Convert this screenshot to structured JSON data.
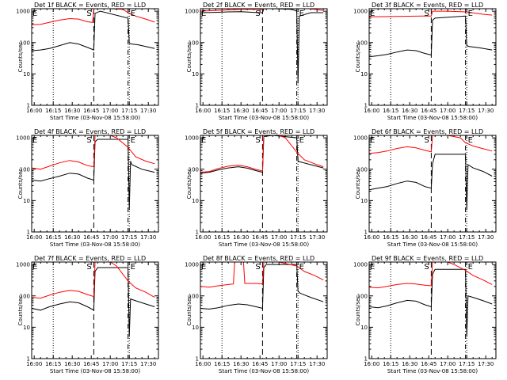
{
  "figure": {
    "xlabel": "Start Time (03-Nov-08 15:58:00)",
    "ylabel": "Counts/sec",
    "x_tick_labels": [
      "16:00",
      "16:15",
      "16:30",
      "16:45",
      "17:00",
      "17:15",
      "17:30"
    ],
    "y_tick_labels": [
      "1",
      "10",
      "100",
      "1000"
    ],
    "marker_labels": {
      "start_left": "E",
      "start_mid": "S",
      "end": "E"
    },
    "colors": {
      "events": "#000000",
      "lld": "#ff0000",
      "background": "#ffffff"
    }
  },
  "chart_data": [
    {
      "type": "line",
      "title": "Det 1f BLACK = Events, RED = LLD",
      "xlabel": "Start Time (03-Nov-08 15:58:00)",
      "ylabel": "Counts/sec",
      "ylim": [
        1,
        1200
      ],
      "log_y": true,
      "xlim": [
        "15:58",
        "17:38"
      ],
      "markers": {
        "S": "16:47",
        "E": "17:14"
      },
      "series": [
        {
          "name": "Events",
          "color": "#000000",
          "x": [
            "15:58",
            "16:05",
            "16:12",
            "16:20",
            "16:28",
            "16:35",
            "16:42",
            "16:47",
            "16:48",
            "16:52",
            "17:14",
            "17:15",
            "17:17",
            "17:22",
            "17:28",
            "17:35"
          ],
          "values": [
            55,
            58,
            65,
            80,
            100,
            90,
            70,
            58,
            850,
            1000,
            600,
            95,
            90,
            85,
            75,
            65
          ]
        },
        {
          "name": "LLD",
          "color": "#ff0000",
          "x": [
            "15:58",
            "16:05",
            "16:12",
            "16:20",
            "16:28",
            "16:35",
            "16:42",
            "16:46",
            "16:47",
            "17:00",
            "17:10",
            "17:14",
            "17:20",
            "17:28",
            "17:35"
          ],
          "values": [
            370,
            380,
            440,
            520,
            580,
            560,
            460,
            440,
            1200,
            1200,
            1150,
            900,
            700,
            560,
            450
          ]
        }
      ]
    },
    {
      "type": "line",
      "title": "Det 2f BLACK = Events, RED = LLD",
      "xlabel": "Start Time (03-Nov-08 15:58:00)",
      "ylabel": "Counts/sec",
      "ylim": [
        1,
        1200
      ],
      "log_y": true,
      "xlim": [
        "15:58",
        "17:38"
      ],
      "markers": {
        "S": "16:47",
        "E": "17:14"
      },
      "series": [
        {
          "name": "Events",
          "color": "#000000",
          "x": [
            "15:58",
            "16:10",
            "16:20",
            "16:30",
            "16:40",
            "16:47",
            "16:48",
            "16:55",
            "17:10",
            "17:14",
            "17:15",
            "17:16",
            "17:25",
            "17:35"
          ],
          "values": [
            900,
            920,
            950,
            960,
            920,
            900,
            1200,
            1200,
            1150,
            1000,
            5,
            700,
            900,
            900
          ]
        },
        {
          "name": "LLD",
          "color": "#ff0000",
          "x": [
            "15:58",
            "16:10",
            "16:20",
            "16:30",
            "16:40",
            "16:47",
            "16:48",
            "16:55",
            "17:00",
            "17:10",
            "17:14",
            "17:20",
            "17:28",
            "17:35"
          ],
          "values": [
            1000,
            1050,
            1100,
            1150,
            1150,
            1150,
            1200,
            1200,
            1200,
            1250,
            1400,
            1250,
            1150,
            1050
          ]
        }
      ]
    },
    {
      "type": "line",
      "title": "Det 3f BLACK = Events, RED = LLD",
      "xlabel": "Start Time (03-Nov-08 15:58:00)",
      "ylabel": "Counts/sec",
      "ylim": [
        1,
        1200
      ],
      "log_y": true,
      "xlim": [
        "15:58",
        "17:38"
      ],
      "markers": {
        "S": "16:47",
        "E": "17:14"
      },
      "series": [
        {
          "name": "Events",
          "color": "#000000",
          "x": [
            "15:58",
            "16:05",
            "16:12",
            "16:20",
            "16:28",
            "16:35",
            "16:42",
            "16:47",
            "16:48",
            "16:50",
            "17:14",
            "17:15",
            "17:17",
            "17:25",
            "17:35"
          ],
          "values": [
            35,
            38,
            42,
            50,
            58,
            55,
            45,
            40,
            520,
            600,
            700,
            80,
            75,
            68,
            58
          ]
        },
        {
          "name": "LLD",
          "color": "#ff0000",
          "x": [
            "15:58",
            "16:10",
            "16:20",
            "16:30",
            "16:40",
            "16:47",
            "16:48",
            "17:00",
            "17:14",
            "17:20",
            "17:28",
            "17:35"
          ],
          "values": [
            660,
            670,
            680,
            690,
            700,
            700,
            1000,
            1000,
            950,
            880,
            800,
            750
          ]
        }
      ]
    },
    {
      "type": "line",
      "title": "Det 4f BLACK = Events, RED = LLD",
      "xlabel": "Start Time (03-Nov-08 15:58:00)",
      "ylabel": "Counts/sec",
      "ylim": [
        1,
        1200
      ],
      "log_y": true,
      "xlim": [
        "15:58",
        "17:38"
      ],
      "markers": {
        "S": "16:47",
        "E": "17:14"
      },
      "series": [
        {
          "name": "Events",
          "color": "#000000",
          "x": [
            "15:58",
            "16:05",
            "16:12",
            "16:20",
            "16:28",
            "16:35",
            "16:42",
            "16:47",
            "16:48",
            "16:50",
            "17:14",
            "17:15",
            "17:16",
            "17:17",
            "17:25",
            "17:35"
          ],
          "values": [
            45,
            42,
            50,
            60,
            75,
            70,
            52,
            45,
            750,
            900,
            900,
            5,
            180,
            140,
            100,
            80
          ]
        },
        {
          "name": "LLD",
          "color": "#ff0000",
          "x": [
            "15:58",
            "16:05",
            "16:12",
            "16:20",
            "16:28",
            "16:35",
            "16:42",
            "16:47",
            "16:48",
            "17:00",
            "17:05",
            "17:14",
            "17:20",
            "17:28",
            "17:35"
          ],
          "values": [
            110,
            100,
            125,
            160,
            190,
            170,
            130,
            120,
            1200,
            1200,
            1000,
            500,
            250,
            180,
            150
          ]
        }
      ]
    },
    {
      "type": "line",
      "title": "Det 5f BLACK = Events, RED = LLD",
      "xlabel": "Start Time (03-Nov-08 15:58:00)",
      "ylabel": "Counts/sec",
      "ylim": [
        1,
        1200
      ],
      "log_y": true,
      "xlim": [
        "15:58",
        "17:38"
      ],
      "markers": {
        "S": "16:47",
        "E": "17:14"
      },
      "series": [
        {
          "name": "Events",
          "color": "#000000",
          "x": [
            "15:58",
            "16:05",
            "16:12",
            "16:20",
            "16:28",
            "16:35",
            "16:42",
            "16:47",
            "16:48",
            "16:55",
            "17:14",
            "17:15",
            "17:17",
            "17:25",
            "17:35"
          ],
          "values": [
            75,
            80,
            95,
            110,
            120,
            108,
            90,
            80,
            1100,
            1200,
            1000,
            180,
            170,
            140,
            110
          ]
        },
        {
          "name": "LLD",
          "color": "#ff0000",
          "x": [
            "15:58",
            "16:05",
            "16:12",
            "16:20",
            "16:28",
            "16:35",
            "16:42",
            "16:47",
            "16:48",
            "17:00",
            "17:05",
            "17:14",
            "17:20",
            "17:28",
            "17:35"
          ],
          "values": [
            80,
            85,
            105,
            125,
            135,
            120,
            98,
            88,
            1200,
            1200,
            1000,
            350,
            200,
            150,
            120
          ]
        }
      ]
    },
    {
      "type": "line",
      "title": "Det 6f BLACK = Events, RED = LLD",
      "xlabel": "Start Time (03-Nov-08 15:58:00)",
      "ylabel": "Counts/sec",
      "ylim": [
        1,
        1200
      ],
      "log_y": true,
      "xlim": [
        "15:58",
        "17:38"
      ],
      "markers": {
        "S": "16:47",
        "E": "17:14"
      },
      "series": [
        {
          "name": "Events",
          "color": "#000000",
          "x": [
            "15:58",
            "16:05",
            "16:12",
            "16:20",
            "16:28",
            "16:35",
            "16:42",
            "16:47",
            "16:48",
            "16:50",
            "17:14",
            "17:15",
            "17:16",
            "17:20",
            "17:28",
            "17:35"
          ],
          "values": [
            22,
            25,
            28,
            35,
            42,
            38,
            28,
            25,
            150,
            300,
            300,
            5,
            140,
            110,
            85,
            60
          ]
        },
        {
          "name": "LLD",
          "color": "#ff0000",
          "x": [
            "15:58",
            "16:05",
            "16:12",
            "16:20",
            "16:28",
            "16:35",
            "16:42",
            "16:47",
            "16:48",
            "17:00",
            "17:10",
            "17:14",
            "17:20",
            "17:28",
            "17:35"
          ],
          "values": [
            320,
            340,
            380,
            460,
            520,
            480,
            400,
            360,
            1200,
            1200,
            1000,
            700,
            550,
            450,
            380
          ]
        }
      ]
    },
    {
      "type": "line",
      "title": "Det 7f BLACK = Events, RED = LLD",
      "xlabel": "Start Time (03-Nov-08 15:58:00)",
      "ylabel": "Counts/sec",
      "ylim": [
        1,
        1200
      ],
      "log_y": true,
      "xlim": [
        "15:58",
        "17:38"
      ],
      "markers": {
        "S": "16:47",
        "E": "17:14"
      },
      "series": [
        {
          "name": "Events",
          "color": "#000000",
          "x": [
            "15:58",
            "16:05",
            "16:12",
            "16:20",
            "16:28",
            "16:35",
            "16:42",
            "16:47",
            "16:48",
            "16:50",
            "17:14",
            "17:15",
            "17:16",
            "17:20",
            "17:28",
            "17:35"
          ],
          "values": [
            40,
            35,
            45,
            55,
            65,
            60,
            45,
            35,
            600,
            800,
            800,
            5,
            80,
            70,
            55,
            45
          ]
        },
        {
          "name": "LLD",
          "color": "#ff0000",
          "x": [
            "15:58",
            "16:05",
            "16:12",
            "16:20",
            "16:28",
            "16:35",
            "16:42",
            "16:47",
            "16:48",
            "17:00",
            "17:05",
            "17:14",
            "17:20",
            "17:28",
            "17:35"
          ],
          "values": [
            90,
            85,
            105,
            130,
            150,
            140,
            110,
            95,
            1200,
            1200,
            900,
            300,
            180,
            130,
            90
          ]
        }
      ]
    },
    {
      "type": "line",
      "title": "Det 8f BLACK = Events, RED = LLD",
      "xlabel": "Start Time (03-Nov-08 15:58:00)",
      "ylabel": "Counts/sec",
      "ylim": [
        1,
        1200
      ],
      "log_y": true,
      "xlim": [
        "15:58",
        "17:38"
      ],
      "markers": {
        "S": "16:47",
        "E": "17:14"
      },
      "series": [
        {
          "name": "Events",
          "color": "#000000",
          "x": [
            "15:58",
            "16:05",
            "16:12",
            "16:20",
            "16:28",
            "16:35",
            "16:42",
            "16:47",
            "16:48",
            "16:50",
            "17:14",
            "17:15",
            "17:17",
            "17:25",
            "17:35"
          ],
          "values": [
            40,
            38,
            42,
            50,
            55,
            52,
            45,
            40,
            800,
            1000,
            1000,
            140,
            120,
            90,
            65
          ]
        },
        {
          "name": "LLD",
          "color": "#ff0000",
          "x": [
            "15:58",
            "16:05",
            "16:12",
            "16:20",
            "16:24",
            "16:25",
            "16:32",
            "16:33",
            "16:42",
            "16:47",
            "16:48",
            "17:00",
            "17:14",
            "17:20",
            "17:28",
            "17:35"
          ],
          "values": [
            200,
            190,
            210,
            230,
            240,
            1200,
            1200,
            250,
            250,
            240,
            1200,
            1200,
            900,
            600,
            450,
            320
          ]
        }
      ]
    },
    {
      "type": "line",
      "title": "Det 9f BLACK = Events, RED = LLD",
      "xlabel": "Start Time (03-Nov-08 15:58:00)",
      "ylabel": "Counts/sec",
      "ylim": [
        1,
        1200
      ],
      "log_y": true,
      "xlim": [
        "15:58",
        "17:38"
      ],
      "markers": {
        "S": "16:47",
        "E": "17:14"
      },
      "series": [
        {
          "name": "Events",
          "color": "#000000",
          "x": [
            "15:58",
            "16:05",
            "16:12",
            "16:20",
            "16:28",
            "16:35",
            "16:42",
            "16:47",
            "16:48",
            "16:50",
            "17:14",
            "17:15",
            "17:16",
            "17:20",
            "17:28",
            "17:35"
          ],
          "values": [
            45,
            42,
            48,
            60,
            72,
            68,
            52,
            45,
            500,
            700,
            700,
            5,
            100,
            90,
            70,
            55
          ]
        },
        {
          "name": "LLD",
          "color": "#ff0000",
          "x": [
            "15:58",
            "16:05",
            "16:12",
            "16:20",
            "16:28",
            "16:35",
            "16:42",
            "16:47",
            "16:48",
            "17:00",
            "17:05",
            "17:14",
            "17:20",
            "17:28",
            "17:35"
          ],
          "values": [
            190,
            180,
            200,
            230,
            250,
            240,
            220,
            210,
            1200,
            1200,
            1000,
            650,
            450,
            320,
            230
          ]
        }
      ]
    }
  ]
}
